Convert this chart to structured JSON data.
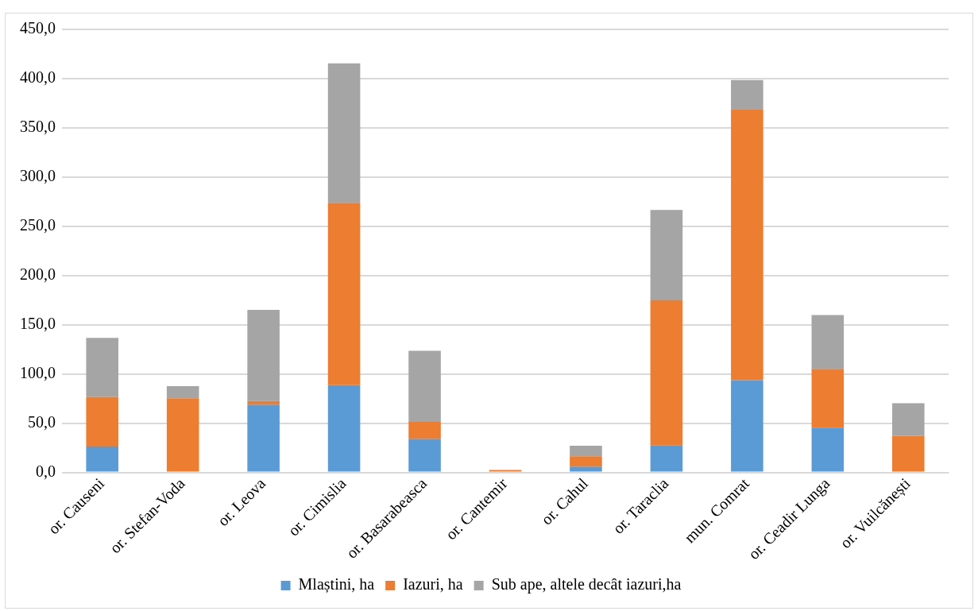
{
  "chart_data": {
    "type": "bar",
    "stacked": true,
    "categories": [
      "or. Causeni",
      "or. Stefan-Voda",
      "or. Leova",
      "or. Cimislia",
      "or. Basarabeasca",
      "or. Cantemir",
      "or. Cahul",
      "or. Taraclia",
      "mun. Comrat",
      "or. Ceadir Lunga",
      "or. Vuilcănești"
    ],
    "series": [
      {
        "name": "Mlaștini, ha",
        "color": "#5b9bd5",
        "values": [
          26.4,
          0,
          68.8,
          88.7,
          34.2,
          0,
          5.9,
          27.7,
          93.7,
          45.4,
          0
        ]
      },
      {
        "name": "Iazuri, ha",
        "color": "#ed7d31",
        "values": [
          50.4,
          75.3,
          3.7,
          185.1,
          17.1,
          2.5,
          10.6,
          147.2,
          275.3,
          59.8,
          37.3
        ]
      },
      {
        "name": "Sub ape, altele decât iazuri,ha",
        "color": "#a5a5a5",
        "values": [
          59.8,
          12.4,
          92.7,
          141.6,
          72.2,
          0,
          10.6,
          91.7,
          29.6,
          54.7,
          33.0
        ]
      }
    ],
    "ylim": [
      0,
      450
    ],
    "yticks": [
      {
        "value": 0,
        "label": "0,0"
      },
      {
        "value": 50,
        "label": "50,0"
      },
      {
        "value": 100,
        "label": "100,0"
      },
      {
        "value": 150,
        "label": "150,0"
      },
      {
        "value": 200,
        "label": "200,0"
      },
      {
        "value": 250,
        "label": "250,0"
      },
      {
        "value": 300,
        "label": "300,0"
      },
      {
        "value": 350,
        "label": "350,0"
      },
      {
        "value": 400,
        "label": "400,0"
      },
      {
        "value": 450,
        "label": "450,0"
      }
    ],
    "grid": "y",
    "legend": "bottom"
  }
}
